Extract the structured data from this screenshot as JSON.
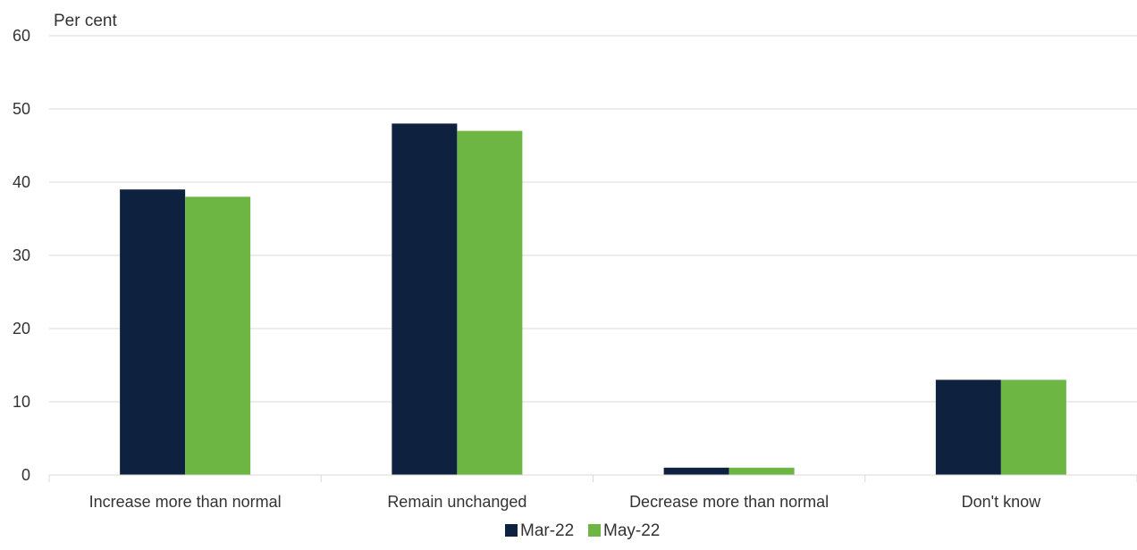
{
  "chart_data": {
    "type": "bar",
    "ylabel": "Per cent",
    "xlabel": "",
    "categories": [
      "Increase more than normal",
      "Remain unchanged",
      "Decrease more than normal",
      "Don't know"
    ],
    "series": [
      {
        "name": "Mar-22",
        "values": [
          39,
          48,
          1,
          13
        ],
        "color": "#0e2240"
      },
      {
        "name": "May-22",
        "values": [
          38,
          47,
          1,
          13
        ],
        "color": "#6db643"
      }
    ],
    "ylim": [
      0,
      60
    ],
    "yticks": [
      0,
      10,
      20,
      30,
      40,
      50,
      60
    ],
    "grid": true,
    "legend": "bottom"
  }
}
